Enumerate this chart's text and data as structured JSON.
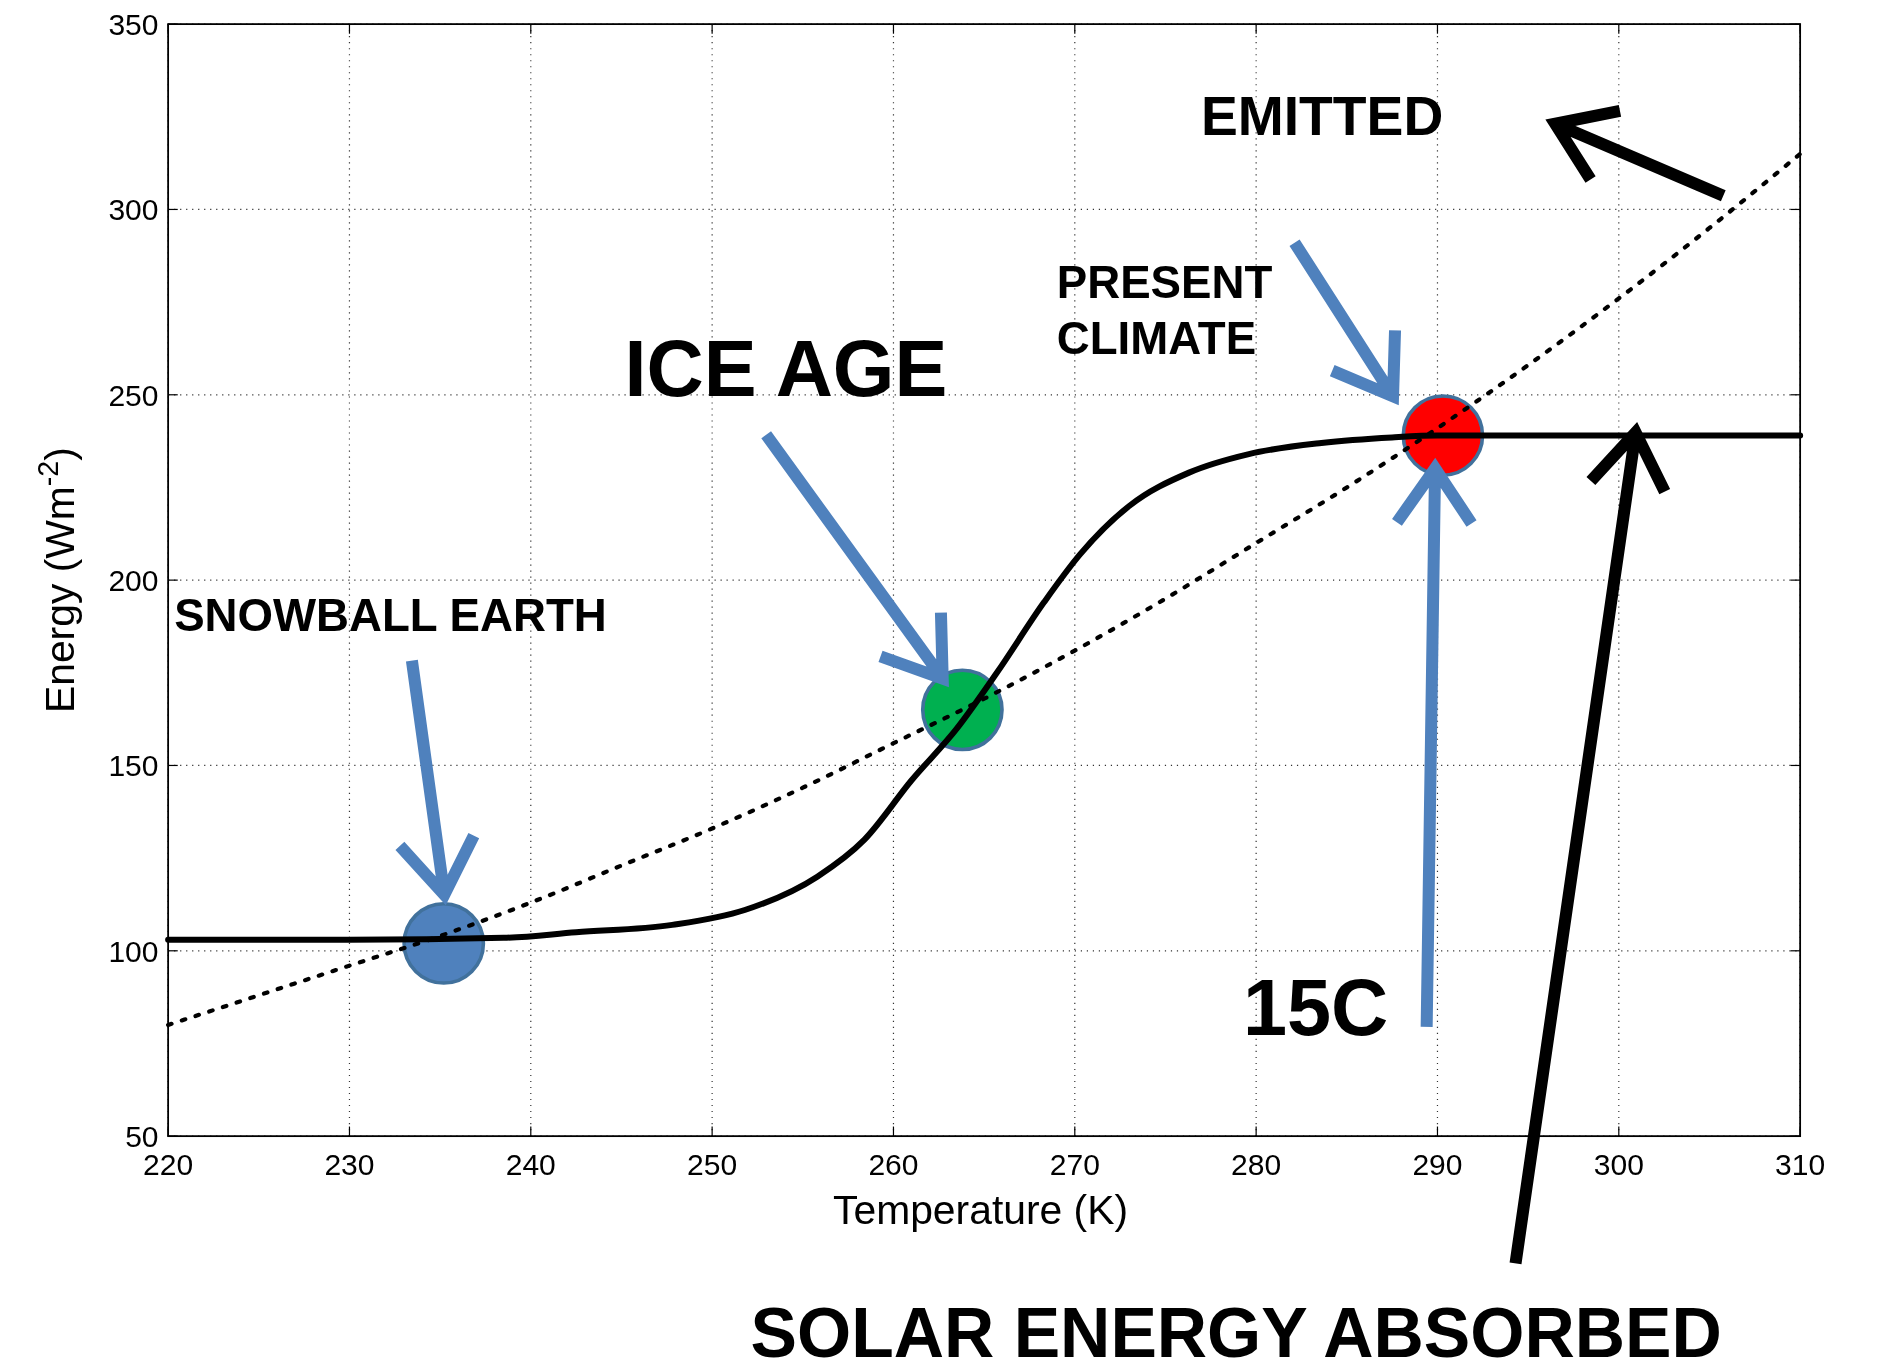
{
  "chart_data": {
    "type": "line",
    "xlabel": "Temperature (K)",
    "ylabel": "Energy (Wm$^{-2}$)",
    "xlim": [
      220,
      310
    ],
    "ylim": [
      50,
      350
    ],
    "xticks": [
      220,
      230,
      240,
      250,
      260,
      270,
      280,
      290,
      300,
      310
    ],
    "yticks": [
      50,
      100,
      150,
      200,
      250,
      300,
      350
    ],
    "grid": true,
    "series": [
      {
        "type": "line",
        "color": "#000000",
        "line_style": "solid",
        "marker": "none",
        "x": [
          220,
          230,
          238.5,
          242.5,
          247.8,
          251.8,
          255.8,
          258.4,
          261,
          263.5,
          265.7,
          268.3,
          270.3,
          273,
          276.3,
          279.6,
          283.6,
          287.5,
          290,
          300,
          310
        ],
        "values": [
          103,
          103,
          103.5,
          105,
          107,
          111,
          120,
          130,
          146,
          160,
          175,
          194,
          207,
          220,
          229,
          234,
          237,
          238.5,
          239,
          239,
          239
        ]
      },
      {
        "type": "line",
        "color": "#000000",
        "line_style": "dotted",
        "marker": "none",
        "x": [
          220,
          225,
          230,
          235,
          240,
          245,
          250,
          255,
          260,
          265,
          270,
          275,
          280,
          285,
          290,
          295,
          300,
          305,
          310
        ],
        "values": [
          80,
          88,
          96,
          104,
          113,
          123,
          133,
          144,
          156,
          168,
          181,
          195,
          210,
          225,
          241,
          258,
          276,
          295,
          315
        ]
      },
      {
        "type": "scatter",
        "marker": "circle",
        "x": [
          235.2,
          263.8,
          290.3
        ],
        "values": [
          102,
          165,
          239
        ],
        "colors": [
          "#4f81bd",
          "#00b050",
          "#ff0000"
        ]
      }
    ],
    "annotations": [
      "SNOWBALL EARTH",
      "ICE AGE",
      "PRESENT\nCLIMATE",
      "EMITTED",
      "15C",
      "SOLAR ENERGY ABSORBED"
    ]
  }
}
